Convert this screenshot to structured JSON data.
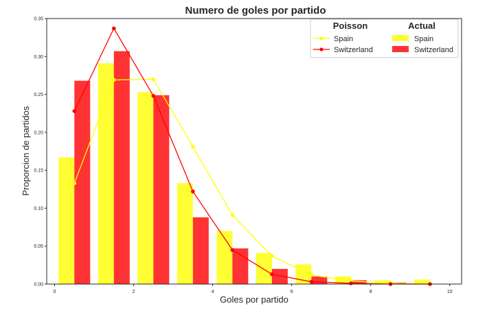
{
  "chart_data": {
    "type": "bar",
    "title": "Numero de goles por partido",
    "xlabel": "Goles por partido",
    "ylabel": "Proporcion de partidos",
    "xlim": [
      -0.2,
      10.3
    ],
    "ylim": [
      0,
      0.35
    ],
    "xticks": [
      0,
      2,
      4,
      6,
      8,
      10
    ],
    "xtick_labels": [
      "0",
      "2",
      "4",
      "6",
      "8",
      "10"
    ],
    "yticks": [
      0.0,
      0.05,
      0.1,
      0.15,
      0.2,
      0.25,
      0.3,
      0.35
    ],
    "ytick_labels": [
      "0.00",
      "0.05",
      "0.10",
      "0.15",
      "0.20",
      "0.25",
      "0.30",
      "0.35"
    ],
    "grid": false,
    "legend": {
      "placement": "top-right",
      "groups": [
        {
          "title": "Poisson",
          "kind": "line",
          "entries": [
            "Spain",
            "Switzerland"
          ]
        },
        {
          "title": "Actual",
          "kind": "bar",
          "entries": [
            "Spain",
            "Switzerland"
          ]
        }
      ]
    },
    "colors": {
      "spain": "#ffff00",
      "switzerland": "#ff0000"
    },
    "bar_series": [
      {
        "name": "Spain",
        "group": "Actual",
        "color": "#ffff00",
        "categories": [
          0,
          1,
          2,
          3,
          4,
          5,
          6,
          7,
          8,
          9
        ],
        "values": [
          0.167,
          0.291,
          0.253,
          0.133,
          0.07,
          0.041,
          0.026,
          0.01,
          0.005,
          0.006
        ]
      },
      {
        "name": "Switzerland",
        "group": "Actual",
        "color": "#ff0000",
        "categories": [
          0,
          1,
          2,
          3,
          4,
          5,
          6,
          7,
          8,
          9
        ],
        "values": [
          0.268,
          0.307,
          0.249,
          0.088,
          0.047,
          0.02,
          0.01,
          0.005,
          0.002,
          0.0
        ]
      }
    ],
    "line_series": [
      {
        "name": "Spain",
        "group": "Poisson",
        "color": "#ffff00",
        "x": [
          0.5,
          1.5,
          2.5,
          3.5,
          4.5,
          5.5,
          6.5,
          7.5,
          8.5,
          9.5
        ],
        "y": [
          0.133,
          0.269,
          0.27,
          0.181,
          0.091,
          0.037,
          0.012,
          0.004,
          0.001,
          0.0
        ]
      },
      {
        "name": "Switzerland",
        "group": "Poisson",
        "color": "#ff0000",
        "x": [
          0.5,
          1.5,
          2.5,
          3.5,
          4.5,
          5.5,
          6.5,
          7.5,
          8.5,
          9.5
        ],
        "y": [
          0.228,
          0.337,
          0.248,
          0.122,
          0.045,
          0.013,
          0.003,
          0.001,
          0.0,
          0.0
        ]
      }
    ]
  }
}
